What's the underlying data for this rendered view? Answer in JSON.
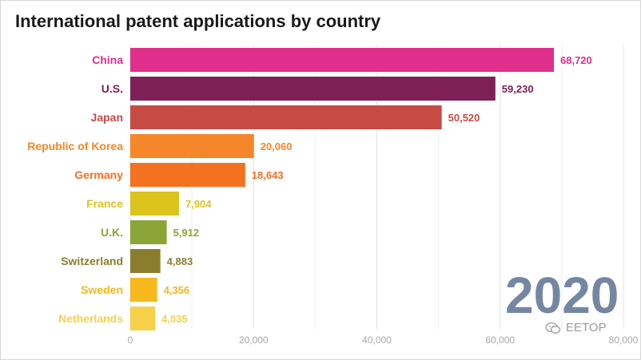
{
  "title": "International patent applications by country",
  "year": "2020",
  "watermark": "EETOP",
  "chart_data": {
    "type": "bar",
    "orientation": "horizontal",
    "title": "International patent applications by country",
    "xlabel": "",
    "ylabel": "",
    "xlim": [
      0,
      80000
    ],
    "xticks": [
      0,
      20000,
      40000,
      60000,
      80000
    ],
    "xtick_labels": [
      "0",
      "20,000",
      "40,000",
      "60,000",
      "80,000"
    ],
    "grid": true,
    "categories": [
      "China",
      "U.S.",
      "Japan",
      "Republic of Korea",
      "Germany",
      "France",
      "U.K.",
      "Switzerland",
      "Sweden",
      "Netherlands"
    ],
    "values": [
      68720,
      59230,
      50520,
      20060,
      18643,
      7904,
      5912,
      4883,
      4356,
      4035
    ],
    "value_labels": [
      "68,720",
      "59,230",
      "50,520",
      "20,060",
      "18,643",
      "7,904",
      "5,912",
      "4,883",
      "4,356",
      "4,035"
    ],
    "colors": [
      "#e02e8c",
      "#7e2057",
      "#c84a45",
      "#f5862a",
      "#f47120",
      "#dcc41d",
      "#8aa535",
      "#8a7e2e",
      "#f5b81d",
      "#f8d14a"
    ]
  }
}
